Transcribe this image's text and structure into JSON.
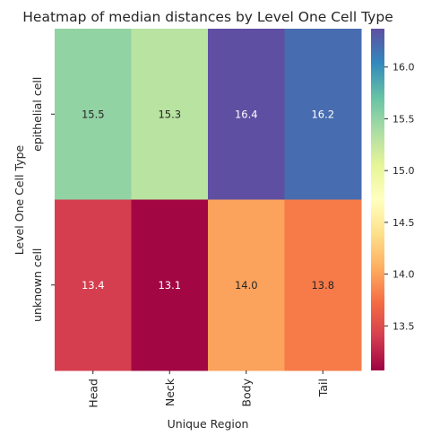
{
  "chart_data": {
    "type": "heatmap",
    "title": "Heatmap of median distances by Level One Cell Type",
    "xlabel": "Unique Region",
    "ylabel": "Level One Cell Type",
    "x_categories": [
      "Head",
      "Neck",
      "Body",
      "Tail"
    ],
    "y_categories": [
      "epithelial cell",
      "unknown cell"
    ],
    "values": [
      [
        15.5,
        15.3,
        16.4,
        16.2
      ],
      [
        13.4,
        13.1,
        14.0,
        13.8
      ]
    ],
    "value_labels": [
      [
        "15.5",
        "15.3",
        "16.4",
        "16.2"
      ],
      [
        "13.4",
        "13.1",
        "14.0",
        "13.8"
      ]
    ],
    "colorbar": {
      "cmap": "Spectral",
      "vmin": 13.07,
      "vmax": 16.37,
      "ticks": [
        13.5,
        14.0,
        14.5,
        15.0,
        15.5,
        16.0
      ],
      "tick_labels": [
        "13.5",
        "14.0",
        "14.5",
        "15.0",
        "15.5",
        "16.0"
      ]
    }
  }
}
